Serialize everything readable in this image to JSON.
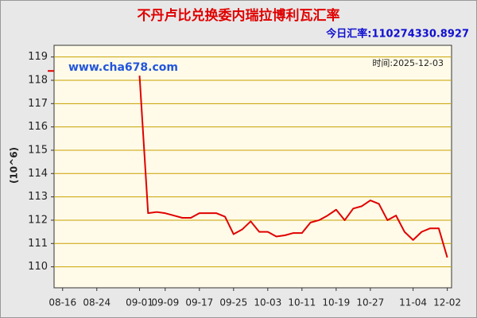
{
  "chart_data": {
    "type": "line",
    "title": "不丹卢比兑换委内瑞拉博利瓦汇率",
    "current_rate": "今日汇率:110274330.8927",
    "watermark": "www.cha678.com",
    "time_label": "时间:2025-12-03",
    "y_label": "(10^6)",
    "categories": [
      null,
      "08-16",
      null,
      null,
      null,
      "08-24",
      null,
      null,
      null,
      null,
      "09-01",
      null,
      null,
      "09-09",
      null,
      null,
      null,
      "09-17",
      null,
      null,
      null,
      "09-25",
      null,
      null,
      null,
      "10-03",
      null,
      null,
      null,
      "10-11",
      null,
      null,
      null,
      "10-19",
      null,
      null,
      null,
      "10-27",
      null,
      null,
      null,
      null,
      "11-04",
      null,
      null,
      null,
      "12-02"
    ],
    "values": [
      118.4,
      null,
      null,
      null,
      null,
      null,
      null,
      null,
      null,
      null,
      118.2,
      112.3,
      112.35,
      112.3,
      112.2,
      112.1,
      112.1,
      112.3,
      112.3,
      112.3,
      112.15,
      111.4,
      111.6,
      111.95,
      111.5,
      111.5,
      111.3,
      111.35,
      111.45,
      111.45,
      111.9,
      112.0,
      112.2,
      112.45,
      112.0,
      112.5,
      112.6,
      112.85,
      112.7,
      112.0,
      112.2,
      111.5,
      111.15,
      111.5,
      111.65,
      111.65,
      110.4
    ],
    "color": "#e00000",
    "ylim": [
      109.1,
      119.5
    ],
    "yticks": [
      110,
      111,
      112,
      113,
      114,
      115,
      116,
      117,
      118,
      119
    ],
    "grid": true
  }
}
